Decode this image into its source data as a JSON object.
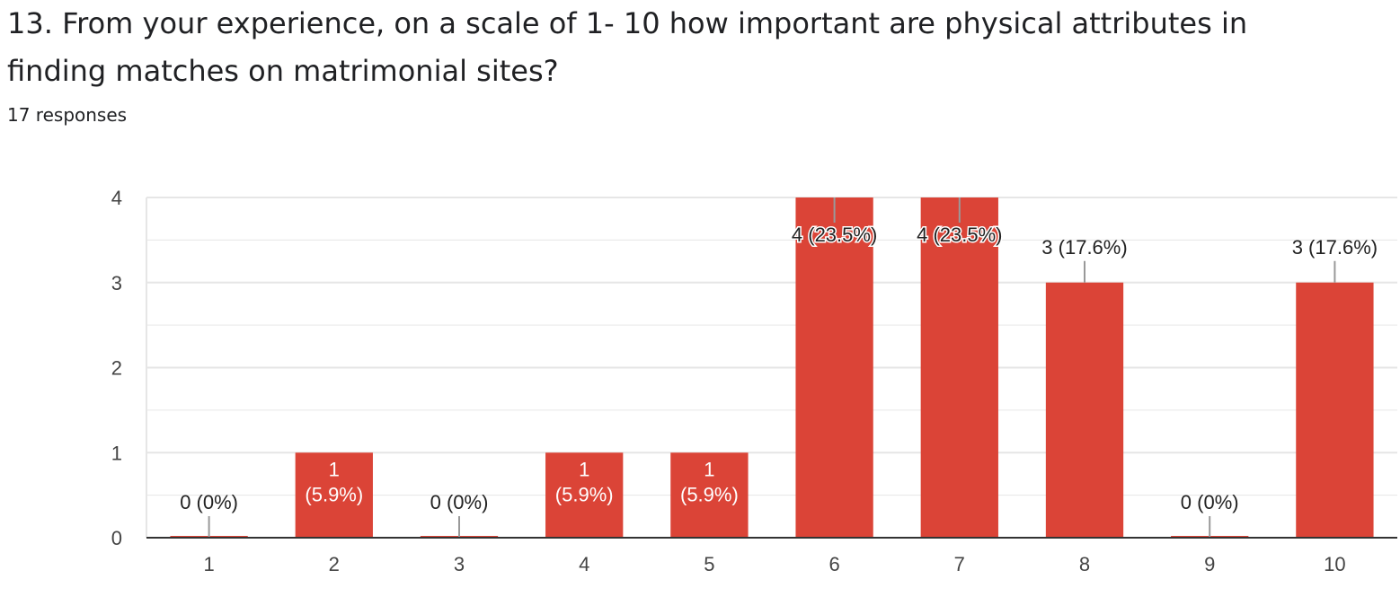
{
  "question": {
    "title": "13. From your experience, on a scale of 1- 10 how important are physical attributes in finding matches on matrimonial sites?",
    "responses": "17 responses"
  },
  "colors": {
    "bar": "#db4437",
    "grid": "#e6e6e6",
    "axis": "#333333",
    "leader": "#999999"
  },
  "chart_data": {
    "type": "bar",
    "categories": [
      "1",
      "2",
      "3",
      "4",
      "5",
      "6",
      "7",
      "8",
      "9",
      "10"
    ],
    "values": [
      0,
      1,
      0,
      1,
      1,
      4,
      4,
      3,
      0,
      3
    ],
    "data_labels": [
      "0 (0%)",
      "1 (5.9%)",
      "0 (0%)",
      "1 (5.9%)",
      "1 (5.9%)",
      "4 (23.5%)",
      "4 (23.5%)",
      "3 (17.6%)",
      "0 (0%)",
      "3 (17.6%)"
    ],
    "ylim": [
      0,
      4
    ],
    "yticks": [
      "0",
      "1",
      "2",
      "3",
      "4"
    ],
    "grid": true,
    "legend": "none"
  }
}
